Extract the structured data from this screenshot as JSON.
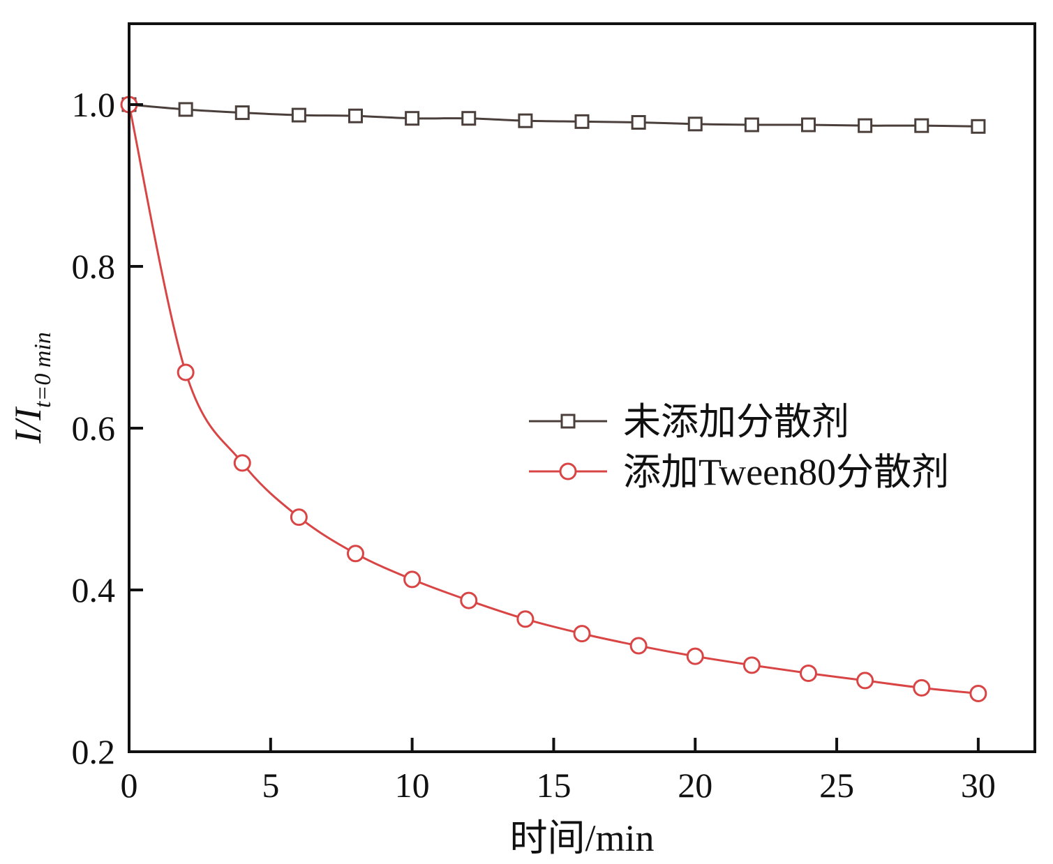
{
  "chart_data": {
    "type": "line",
    "xlabel": "时间/min",
    "ylabel": {
      "main": "I/I",
      "sub": "t=0 min"
    },
    "xlim": [
      0,
      32
    ],
    "ylim": [
      0.2,
      1.1
    ],
    "xticks": [
      0,
      5,
      10,
      15,
      20,
      25,
      30
    ],
    "xtick_labels": [
      "0",
      "5",
      "10",
      "15",
      "20",
      "25",
      "30"
    ],
    "yticks": [
      0.2,
      0.4,
      0.6,
      0.8,
      1.0
    ],
    "ytick_labels": [
      "0.2",
      "0.4",
      "0.6",
      "0.8",
      "1.0"
    ],
    "grid": false,
    "legend_position": "center-right",
    "x": [
      0,
      2,
      4,
      6,
      8,
      10,
      12,
      14,
      16,
      18,
      20,
      22,
      24,
      26,
      28,
      30
    ],
    "series": [
      {
        "name": "未添加分散剂",
        "marker": "square",
        "color": "#4a3f3b",
        "values": [
          1.0,
          0.994,
          0.99,
          0.987,
          0.986,
          0.983,
          0.983,
          0.98,
          0.979,
          0.978,
          0.976,
          0.975,
          0.975,
          0.974,
          0.974,
          0.973
        ]
      },
      {
        "name": "添加Tween80分散剂",
        "marker": "circle",
        "color": "#d94444",
        "values": [
          1.0,
          0.669,
          0.557,
          0.49,
          0.445,
          0.413,
          0.387,
          0.364,
          0.346,
          0.331,
          0.318,
          0.307,
          0.297,
          0.288,
          0.279,
          0.272
        ]
      }
    ]
  }
}
